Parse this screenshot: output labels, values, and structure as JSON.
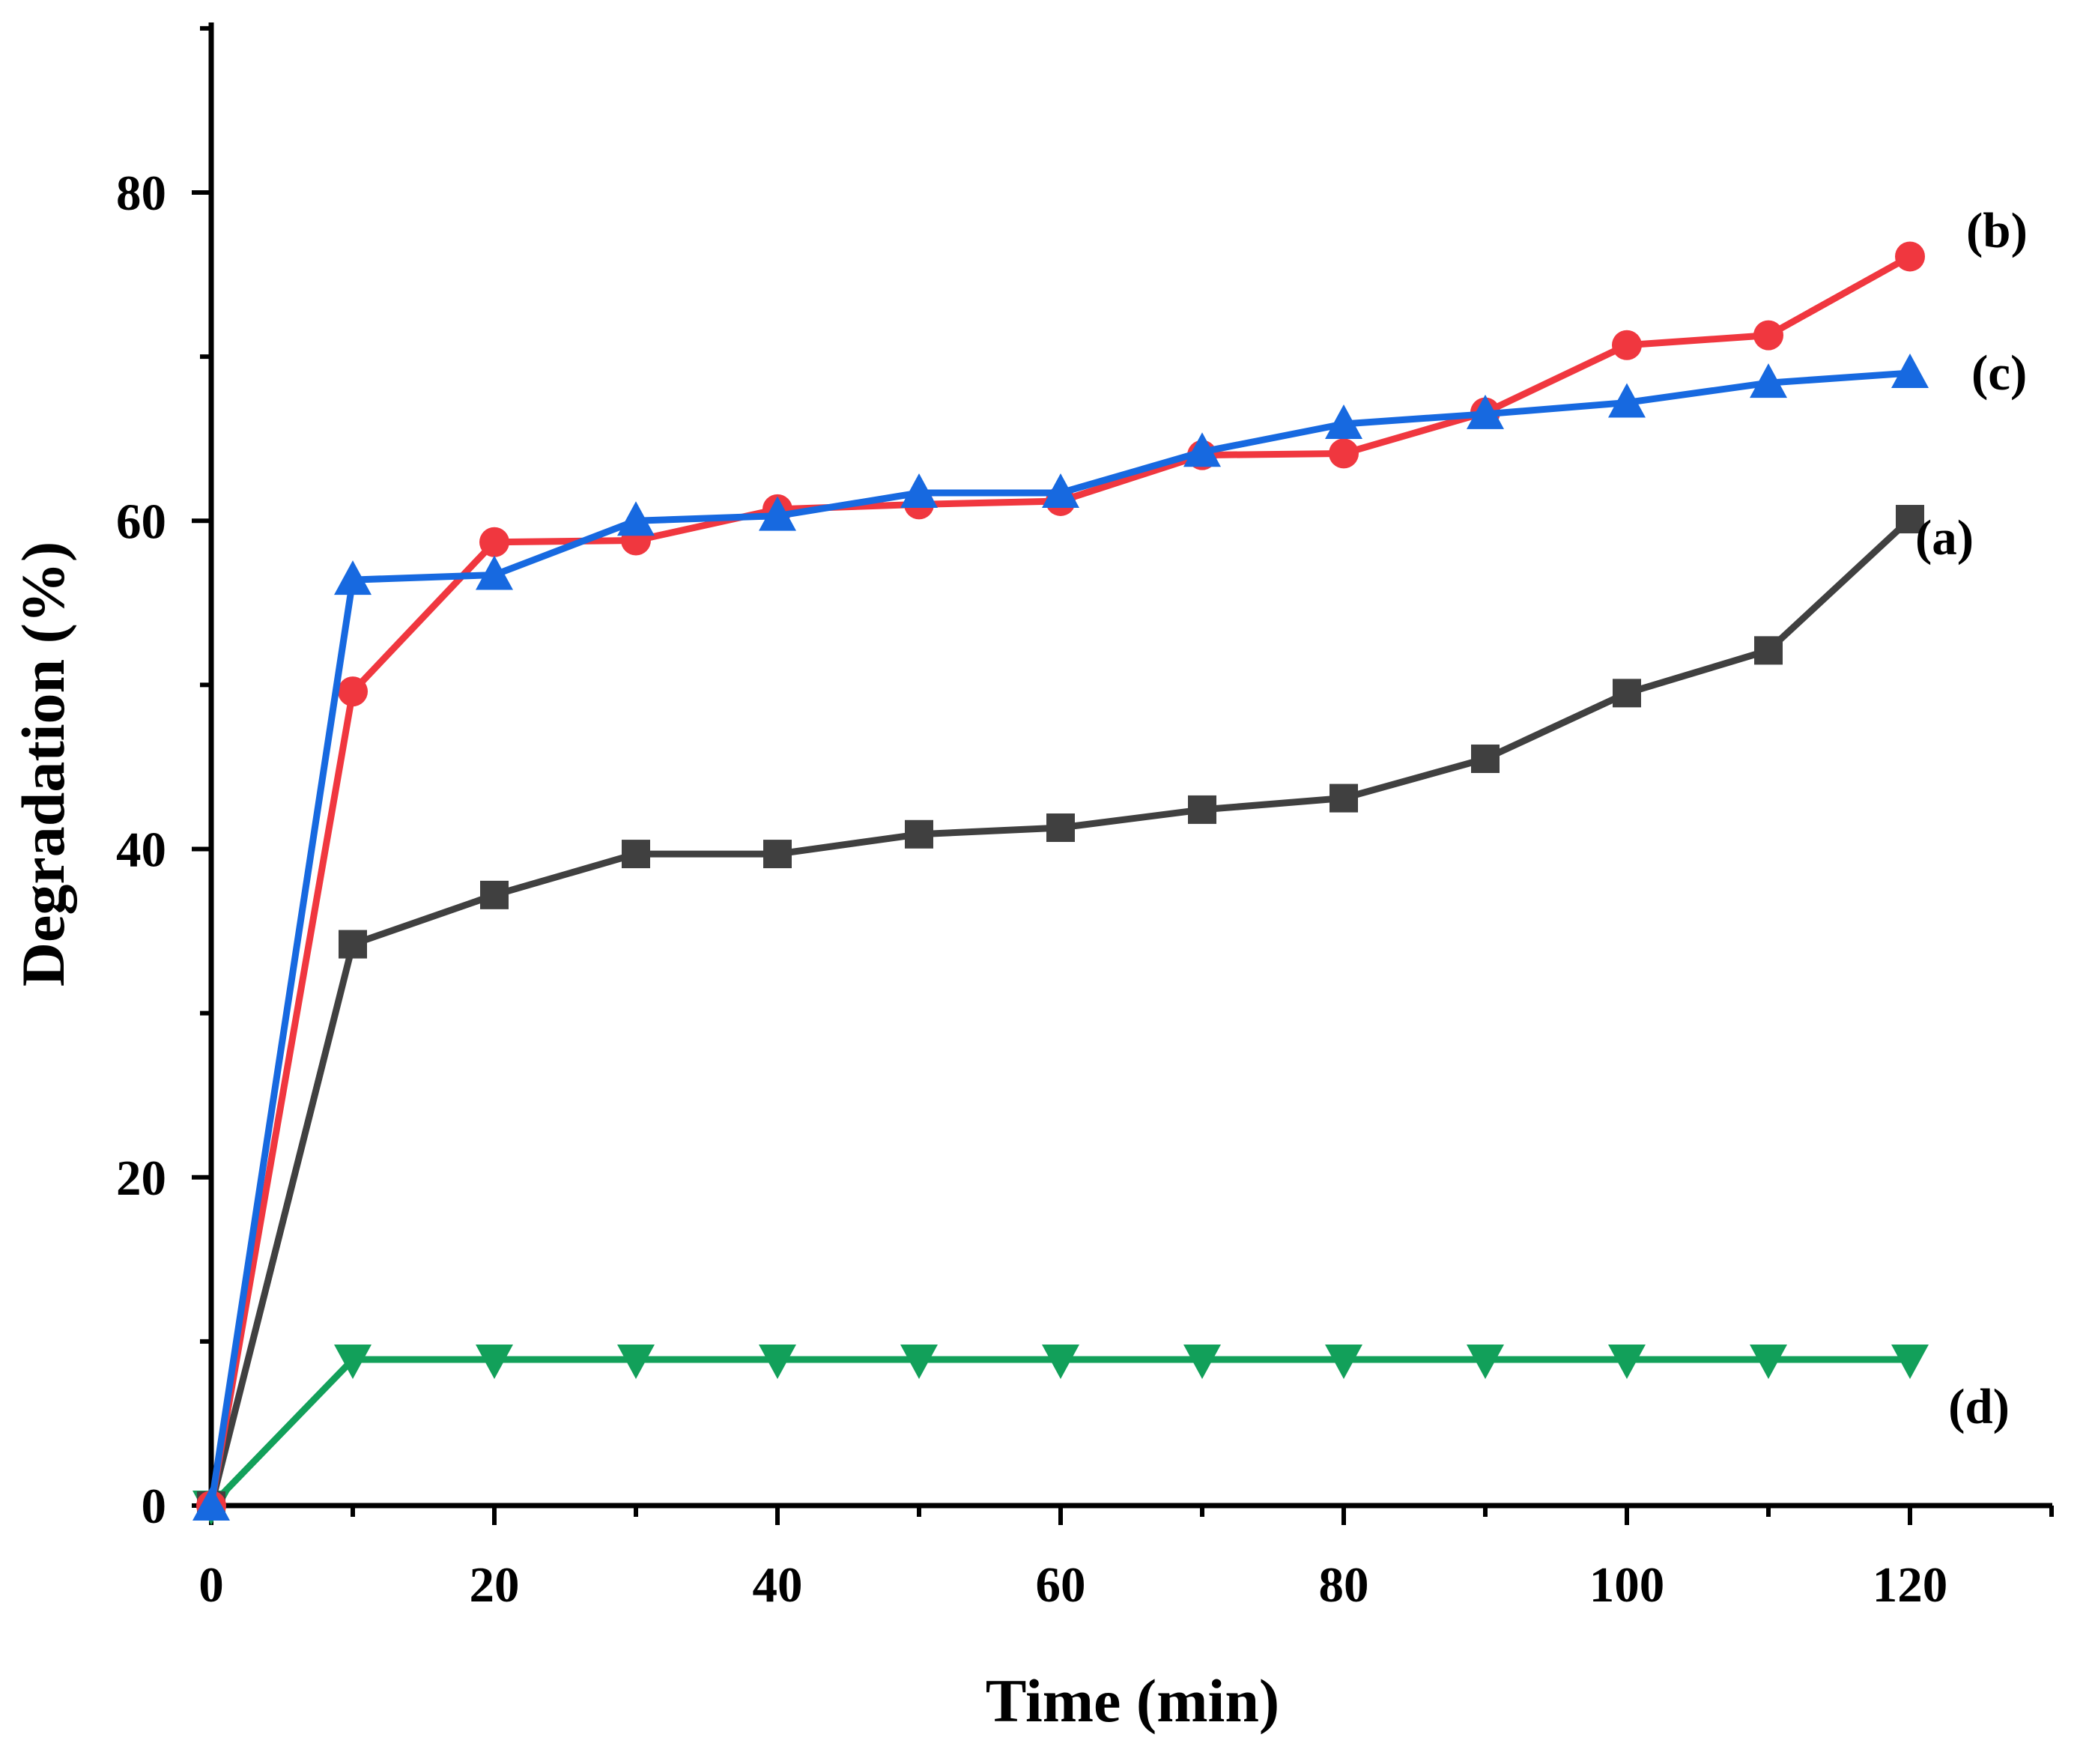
{
  "chart_data": {
    "type": "line",
    "title": "",
    "xlabel": "Time (min)",
    "ylabel": "Degradation (%)",
    "xlim": [
      0,
      130
    ],
    "ylim": [
      0,
      90
    ],
    "x_ticks": [
      "0",
      "20",
      "40",
      "60",
      "80",
      "100",
      "120"
    ],
    "y_ticks": [
      "0",
      "20",
      "40",
      "60",
      "80"
    ],
    "x": [
      0,
      10,
      20,
      30,
      40,
      50,
      60,
      70,
      80,
      90,
      100,
      110,
      120
    ],
    "grid": false,
    "legend": "inline labels at right end of each series",
    "series": [
      {
        "name": "(a)",
        "color": "#404040",
        "marker": "square",
        "values": [
          0,
          34.2,
          37.2,
          39.7,
          39.7,
          40.9,
          41.3,
          42.4,
          43.1,
          45.5,
          49.5,
          52.1,
          60.1
        ]
      },
      {
        "name": "(b)",
        "color": "#f0373f",
        "marker": "circle",
        "values": [
          0,
          49.6,
          58.7,
          58.8,
          60.7,
          61.0,
          61.2,
          64.0,
          64.1,
          66.6,
          70.7,
          71.3,
          76.1
        ]
      },
      {
        "name": "(c)",
        "color": "#1769e0",
        "marker": "triangle-up",
        "values": [
          0,
          56.4,
          56.7,
          60.0,
          60.3,
          61.7,
          61.7,
          64.2,
          65.9,
          66.5,
          67.2,
          68.4,
          69.0
        ]
      },
      {
        "name": "(d)",
        "color": "#12a05a",
        "marker": "triangle-down",
        "values": [
          0,
          8.9,
          8.9,
          8.9,
          8.9,
          8.9,
          8.9,
          8.9,
          8.9,
          8.9,
          8.9,
          8.9,
          8.9
        ]
      }
    ]
  }
}
